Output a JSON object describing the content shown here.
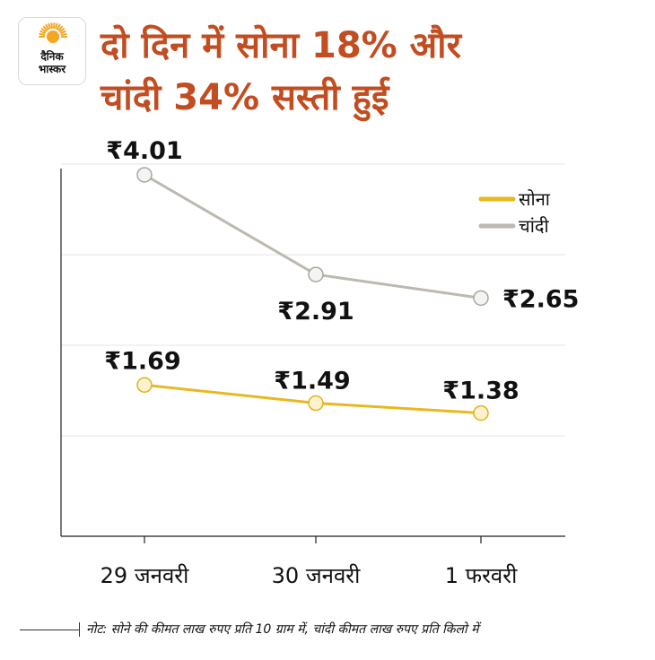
{
  "brand": {
    "logo_text_line1": "दैनिक",
    "logo_text_line2": "भास्कर",
    "accent": "#f5a623"
  },
  "title_line1": "दो दिन में सोना 18% और",
  "title_line2": "चांदी 34% सस्ती हुई",
  "note": "नोट: सोने की कीमत लाख रुपए प्रति 10 ग्राम में, चांदी कीमत लाख रुपए प्रति किलो में",
  "chart_data": {
    "type": "line",
    "categories": [
      "29 जनवरी",
      "30 जनवरी",
      "1 फरवरी"
    ],
    "series": [
      {
        "name": "चांदी",
        "values": [
          4.01,
          2.91,
          2.65
        ],
        "labels": [
          "₹4.01",
          "₹2.91",
          "₹2.65"
        ],
        "color": "#bdb8b0"
      },
      {
        "name": "सोना",
        "values": [
          1.69,
          1.49,
          1.38
        ],
        "labels": [
          "₹1.69",
          "₹1.49",
          "₹1.38"
        ],
        "color": "#e8b820"
      }
    ],
    "legend": "top-right",
    "grid": true
  }
}
